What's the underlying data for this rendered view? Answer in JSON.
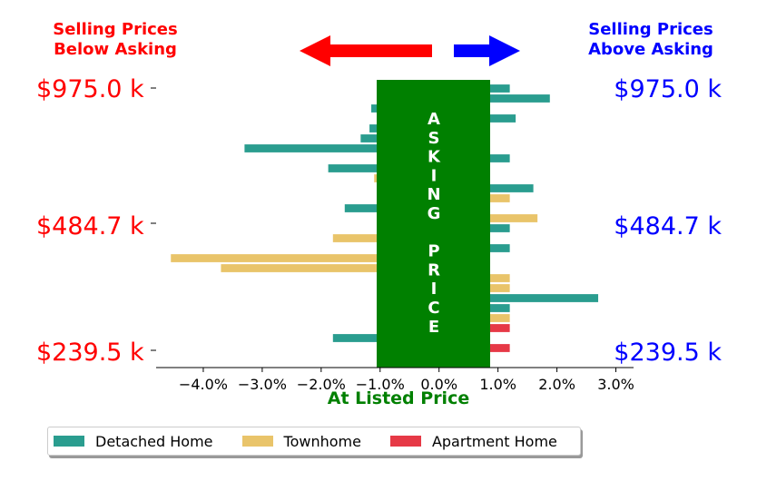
{
  "header": {
    "left_line1": "Selling Prices",
    "left_line2": "Below Asking",
    "right_line1": "Selling Prices",
    "right_line2": "Above Asking"
  },
  "price_labels": {
    "top": "$975.0 k",
    "middle": "$484.7 k",
    "bottom": "$239.5 k"
  },
  "center_band_letters": [
    "A",
    "S",
    "K",
    "I",
    "N",
    "G",
    "",
    "P",
    "R",
    "I",
    "C",
    "E"
  ],
  "colors": {
    "below": "#ff0000",
    "above": "#0000ff",
    "band": "#008000",
    "detached": "#2a9d8f",
    "townhome": "#e9c46a",
    "apartment": "#e63946"
  },
  "chart_data": {
    "type": "bar",
    "orientation": "horizontal",
    "xlabel": "At Listed Price",
    "xlim": [
      -4.8,
      3.3
    ],
    "xticks": [
      -4.0,
      -3.0,
      -2.0,
      -1.0,
      0.0,
      1.0,
      2.0,
      3.0
    ],
    "xtick_labels": [
      "−4.0%",
      "−3.0%",
      "−2.0%",
      "−1.0%",
      "0.0%",
      "1.0%",
      "2.0%",
      "3.0%"
    ],
    "ylim": [
      -0.5,
      27.5
    ],
    "legend_position": "bottom-left",
    "series": [
      {
        "name": "Detached Home",
        "key": "detached"
      },
      {
        "name": "Townhome",
        "key": "townhome"
      },
      {
        "name": "Apartment Home",
        "key": "apartment"
      }
    ],
    "bars": [
      {
        "row": 27,
        "series": "detached",
        "value": 1.2
      },
      {
        "row": 26,
        "series": "detached",
        "value": 1.88
      },
      {
        "row": 25,
        "series": "detached",
        "value": -1.15
      },
      {
        "row": 24,
        "series": "detached",
        "value": 1.3
      },
      {
        "row": 23,
        "series": "detached",
        "value": -1.18
      },
      {
        "row": 22,
        "series": "detached",
        "value": -1.33
      },
      {
        "row": 21,
        "series": "detached",
        "value": -3.3
      },
      {
        "row": 20,
        "series": "detached",
        "value": 1.2
      },
      {
        "row": 19,
        "series": "detached",
        "value": -1.88
      },
      {
        "row": 18,
        "series": "townhome",
        "value": -1.1
      },
      {
        "row": 17,
        "series": "detached",
        "value": 1.6
      },
      {
        "row": 16,
        "series": "townhome",
        "value": 1.2
      },
      {
        "row": 15,
        "series": "detached",
        "value": -1.6
      },
      {
        "row": 14,
        "series": "townhome",
        "value": 1.67
      },
      {
        "row": 13,
        "series": "detached",
        "value": 1.2
      },
      {
        "row": 12,
        "series": "townhome",
        "value": -1.8
      },
      {
        "row": 11,
        "series": "detached",
        "value": 1.2
      },
      {
        "row": 10,
        "series": "townhome",
        "value": -4.55
      },
      {
        "row": 9,
        "series": "townhome",
        "value": -3.7
      },
      {
        "row": 8,
        "series": "townhome",
        "value": 1.2
      },
      {
        "row": 7,
        "series": "townhome",
        "value": 1.2
      },
      {
        "row": 6,
        "series": "detached",
        "value": 2.7
      },
      {
        "row": 5,
        "series": "detached",
        "value": 1.2
      },
      {
        "row": 4,
        "series": "townhome",
        "value": 1.2
      },
      {
        "row": 3,
        "series": "apartment",
        "value": 1.2
      },
      {
        "row": 2,
        "series": "detached",
        "value": -1.8
      },
      {
        "row": 1,
        "series": "apartment",
        "value": 1.2
      }
    ]
  }
}
